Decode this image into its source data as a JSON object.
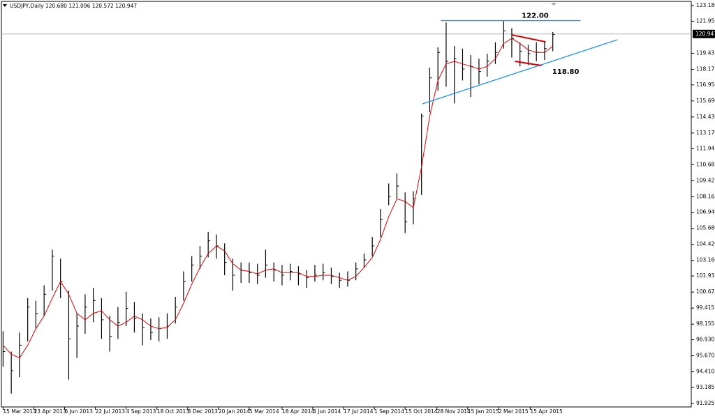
{
  "chart_data": {
    "type": "ohlc",
    "title": "USDJPY,Daily  120.680 121.096 120.572 120.947",
    "bar_color": "#000000",
    "x": [
      0,
      8,
      16,
      24,
      32,
      40,
      48,
      56,
      64,
      72,
      80,
      88,
      96,
      104,
      112,
      120,
      128,
      136,
      144,
      152,
      160,
      168,
      176,
      184,
      192,
      200,
      208,
      216,
      224,
      232,
      240,
      248,
      256,
      264,
      272,
      280,
      288,
      296,
      304,
      312,
      320,
      328,
      336,
      344,
      352,
      360,
      368,
      376,
      384,
      392,
      400,
      408,
      416,
      424,
      432,
      440,
      448,
      456,
      464,
      472,
      480,
      488,
      496,
      504,
      512,
      520,
      528,
      536
    ],
    "high": [
      97.6,
      96.0,
      97.5,
      100.2,
      100.0,
      101.2,
      104.0,
      103.3,
      100.8,
      99.0,
      100.5,
      101.0,
      100.2,
      98.8,
      99.5,
      100.7,
      99.9,
      99.0,
      98.6,
      98.7,
      99.0,
      100.3,
      102.3,
      103.5,
      104.3,
      105.4,
      105.2,
      104.5,
      103.3,
      103.0,
      103.0,
      102.9,
      104.0,
      103.0,
      102.8,
      102.9,
      102.7,
      102.4,
      102.8,
      102.9,
      102.6,
      102.2,
      102.3,
      103.0,
      103.7,
      105.0,
      107.2,
      109.2,
      110.0,
      108.5,
      108.6,
      114.7,
      118.3,
      119.9,
      121.85,
      120.0,
      119.8,
      119.3,
      119.0,
      119.4,
      120.3,
      122.0,
      121.4,
      120.3,
      120.1,
      120.3,
      120.4,
      121.1
    ],
    "low": [
      94.8,
      92.7,
      94.0,
      96.8,
      97.8,
      98.8,
      100.8,
      100.2,
      93.8,
      95.5,
      97.4,
      98.3,
      97.0,
      96.0,
      97.0,
      98.0,
      97.5,
      96.5,
      96.9,
      96.8,
      97.0,
      98.2,
      100.0,
      101.5,
      102.5,
      103.4,
      103.3,
      102.0,
      100.8,
      101.4,
      101.4,
      101.3,
      101.8,
      101.5,
      101.2,
      101.6,
      101.2,
      101.0,
      101.5,
      101.6,
      101.3,
      101.0,
      101.1,
      101.6,
      102.6,
      103.5,
      105.0,
      107.5,
      108.0,
      105.3,
      106.0,
      108.3,
      114.8,
      116.5,
      116.8,
      115.5,
      117.3,
      116.0,
      117.0,
      117.6,
      118.6,
      119.8,
      119.1,
      118.4,
      118.5,
      118.8,
      118.9,
      119.6
    ],
    "close": [
      96.0,
      94.5,
      96.5,
      99.5,
      99.0,
      100.5,
      103.5,
      101.5,
      97.0,
      98.0,
      99.5,
      100.0,
      98.5,
      97.2,
      98.3,
      99.4,
      98.6,
      97.9,
      97.5,
      97.8,
      98.0,
      99.5,
      101.5,
      102.8,
      103.5,
      104.7,
      104.3,
      103.0,
      102.0,
      102.4,
      102.2,
      102.0,
      102.8,
      102.4,
      102.0,
      102.3,
      102.1,
      101.8,
      102.0,
      102.2,
      101.9,
      101.6,
      101.6,
      102.5,
      103.2,
      104.3,
      106.4,
      108.2,
      109.0,
      106.2,
      108.0,
      114.5,
      117.5,
      119.5,
      118.8,
      119.0,
      118.2,
      118.4,
      118.0,
      118.8,
      119.5,
      121.2,
      120.6,
      119.6,
      119.4,
      119.5,
      119.8,
      120.9
    ],
    "ma": {
      "color": "#e00000",
      "values": [
        96.5,
        95.8,
        95.5,
        96.5,
        97.8,
        98.8,
        100.2,
        101.5,
        100.5,
        99.0,
        98.5,
        99.0,
        99.2,
        98.5,
        98.0,
        98.3,
        98.8,
        98.5,
        98.0,
        97.8,
        97.9,
        98.5,
        99.8,
        101.3,
        102.6,
        103.7,
        104.3,
        103.9,
        102.9,
        102.4,
        102.3,
        102.1,
        102.4,
        102.5,
        102.2,
        102.2,
        102.2,
        101.9,
        101.9,
        102.0,
        102.0,
        101.8,
        101.6,
        101.9,
        102.6,
        103.4,
        104.8,
        106.6,
        108.0,
        107.8,
        107.3,
        110.5,
        114.5,
        117.3,
        118.6,
        118.8,
        118.6,
        118.4,
        118.2,
        118.4,
        119.0,
        120.2,
        120.6,
        120.2,
        119.7,
        119.5,
        119.5,
        120.0
      ]
    },
    "lines": [
      {
        "x": [
          427,
          563
        ],
        "y": [
          122.0,
          122.0
        ],
        "color": "#1e90ff",
        "label": "122.00"
      },
      {
        "x": [
          409,
          599
        ],
        "y": [
          115.46,
          120.5
        ],
        "color": "#1e90ff",
        "label": "118.80"
      },
      {
        "x": [
          496,
          529
        ],
        "y": [
          120.88,
          120.33
        ],
        "color": "#d00000"
      },
      {
        "x": [
          499,
          525
        ],
        "y": [
          118.8,
          118.47
        ],
        "color": "#d00000"
      }
    ],
    "current_price": 120.947,
    "xlim": [
      -3,
      671
    ],
    "ylim": [
      91.925,
      123.18
    ],
    "xticks": [
      {
        "value": 0,
        "label": "15 Mar 2013"
      },
      {
        "value": 30,
        "label": "23 Apr 2013"
      },
      {
        "value": 60,
        "label": "6 Jun 2013"
      },
      {
        "value": 90,
        "label": "22 Jul 2013"
      },
      {
        "value": 120,
        "label": "4 Sep 2013"
      },
      {
        "value": 150,
        "label": "18 Oct 2013"
      },
      {
        "value": 180,
        "label": "3 Dec 2013"
      },
      {
        "value": 210,
        "label": "20 Jan 2014"
      },
      {
        "value": 240,
        "label": "5 Mar 2014"
      },
      {
        "value": 272,
        "label": "18 Apr 2014"
      },
      {
        "value": 302,
        "label": "3 Jun 2014"
      },
      {
        "value": 332,
        "label": "17 Jul 2014"
      },
      {
        "value": 362,
        "label": "1 Sep 2014"
      },
      {
        "value": 392,
        "label": "15 Oct 2014"
      },
      {
        "value": 423,
        "label": "28 Nov 2014"
      },
      {
        "value": 453,
        "label": "15 Jan 2015"
      },
      {
        "value": 483,
        "label": "2 Mar 2015"
      },
      {
        "value": 514,
        "label": "15 Apr 2015"
      }
    ],
    "yticks": [
      {
        "value": 123.18,
        "label": "123.180"
      },
      121.955,
      119.435,
      118.175,
      {
        "value": 116.95,
        "label": "116.950"
      },
      {
        "value": 115.69,
        "label": "115.690"
      },
      {
        "value": 114.43,
        "label": "114.430"
      },
      {
        "value": 113.17,
        "label": "113.170"
      },
      111.945,
      110.685,
      109.425,
      108.165,
      {
        "value": 106.94,
        "label": "106.940"
      },
      {
        "value": 105.68,
        "label": "105.680"
      },
      {
        "value": 104.42,
        "label": "104.420"
      },
      {
        "value": 103.16,
        "label": "103.160"
      },
      101.935,
      100.675,
      99.415,
      98.155,
      {
        "value": 96.93,
        "label": "96.930"
      },
      {
        "value": 95.67,
        "label": "95.670"
      },
      {
        "value": 94.41,
        "label": "94.410"
      },
      93.185,
      91.925
    ]
  }
}
